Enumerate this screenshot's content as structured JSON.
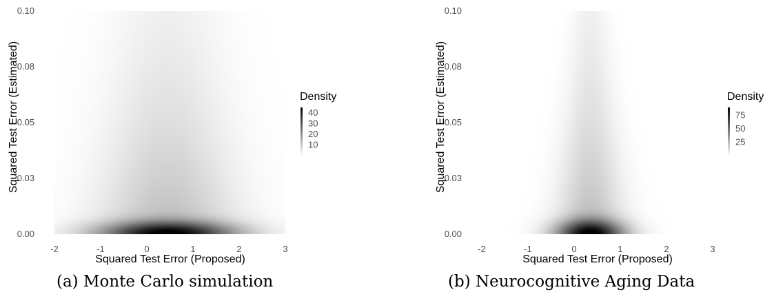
{
  "chart_data": [
    {
      "type": "heatmap",
      "caption": "(a) Monte Carlo simulation",
      "xlabel": "Squared Test Error (Proposed)",
      "ylabel": "Squared Test Error (Estimated)",
      "xlim": [
        -2,
        3
      ],
      "ylim": [
        0,
        0.1
      ],
      "x_ticks": [
        "-2",
        "-1",
        "0",
        "1",
        "2",
        "3"
      ],
      "x_tick_values": [
        -2,
        -1,
        0,
        1,
        2,
        3
      ],
      "y_ticks": [
        "0.00",
        "0.03",
        "0.05",
        "0.08",
        "0.10"
      ],
      "y_tick_values": [
        0,
        0.025,
        0.05,
        0.075,
        0.1
      ],
      "legend": {
        "title": "Density",
        "position": "right",
        "ticks": [
          "40",
          "30",
          "20",
          "10"
        ],
        "tick_values": [
          40,
          30,
          20,
          10
        ],
        "range": [
          0,
          45
        ]
      },
      "density": {
        "peak_x": 0.45,
        "peak_y": 0.0,
        "peak_density": 45,
        "spread_x_at_bottom": 0.9,
        "spread_x_at_top": 0.7,
        "spread_y": 0.0035
      },
      "colors": {
        "low": "#ffffff",
        "high": "#000000"
      }
    },
    {
      "type": "heatmap",
      "caption": "(b) Neurocognitive Aging Data",
      "xlabel": "Squared Test Error (Proposed)",
      "ylabel": "Squared Test Error (Estimated)",
      "xlim": [
        -2,
        3
      ],
      "ylim": [
        0,
        0.1
      ],
      "x_ticks": [
        "-2",
        "-1",
        "0",
        "1",
        "2",
        "3"
      ],
      "x_tick_values": [
        -2,
        -1,
        0,
        1,
        2,
        3
      ],
      "y_ticks": [
        "0.00",
        "0.03",
        "0.05",
        "0.08",
        "0.10"
      ],
      "y_tick_values": [
        0,
        0.025,
        0.05,
        0.075,
        0.1
      ],
      "legend": {
        "title": "Density",
        "position": "right",
        "ticks": [
          "75",
          "50",
          "25"
        ],
        "tick_values": [
          75,
          50,
          25
        ],
        "range": [
          0,
          90
        ]
      },
      "density": {
        "peak_x": 0.35,
        "peak_y": 0.0,
        "peak_density": 90,
        "spread_x_at_bottom": 0.45,
        "spread_x_at_top": 0.22,
        "spread_y": 0.004
      },
      "colors": {
        "low": "#ffffff",
        "high": "#000000"
      }
    }
  ]
}
